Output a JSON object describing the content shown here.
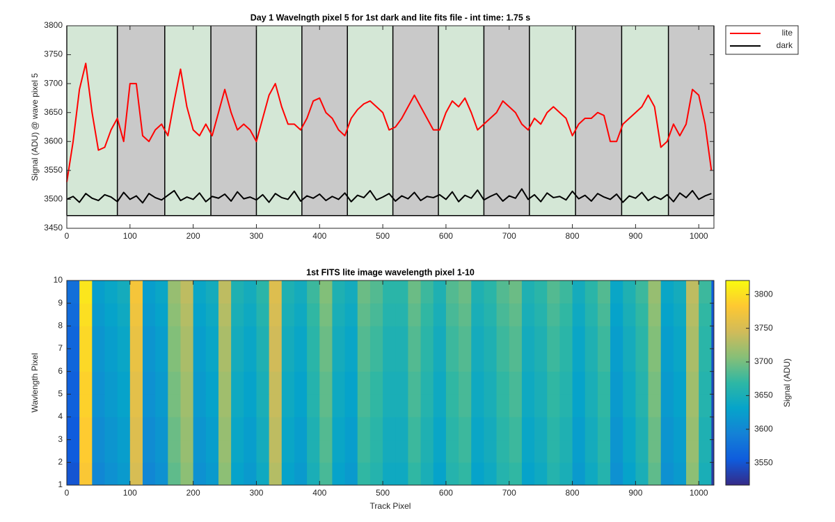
{
  "chart_data": [
    {
      "type": "line",
      "title": "Day 1 Wavelngth pixel 5 for 1st dark and lite fits file - int time: 1.75 s",
      "y_label": "Signal (ADU) @ wave pixel 5",
      "xlim": [
        0,
        1024
      ],
      "ylim": [
        3450,
        3800
      ],
      "xticks": [
        0,
        100,
        200,
        300,
        400,
        500,
        600,
        700,
        800,
        900,
        1000
      ],
      "yticks": [
        3450,
        3500,
        3550,
        3600,
        3650,
        3700,
        3750,
        3800
      ],
      "legend": "outside-top-right",
      "band_edges": [
        0,
        80,
        155,
        228,
        300,
        372,
        444,
        516,
        588,
        660,
        732,
        805,
        878,
        952,
        1024
      ],
      "band_colors": [
        "#d4e7d6",
        "#c9c9c9"
      ],
      "band_ylim": [
        3472,
        3800
      ],
      "x": [
        0,
        10,
        20,
        30,
        40,
        50,
        60,
        70,
        80,
        90,
        100,
        110,
        120,
        130,
        140,
        150,
        160,
        170,
        180,
        190,
        200,
        210,
        220,
        230,
        240,
        250,
        260,
        270,
        280,
        290,
        300,
        310,
        320,
        330,
        340,
        350,
        360,
        370,
        380,
        390,
        400,
        410,
        420,
        430,
        440,
        450,
        460,
        470,
        480,
        490,
        500,
        510,
        520,
        530,
        540,
        550,
        560,
        570,
        580,
        590,
        600,
        610,
        620,
        630,
        640,
        650,
        660,
        670,
        680,
        690,
        700,
        710,
        720,
        730,
        740,
        750,
        760,
        770,
        780,
        790,
        800,
        810,
        820,
        830,
        840,
        850,
        860,
        870,
        880,
        890,
        900,
        910,
        920,
        930,
        940,
        950,
        960,
        970,
        980,
        990,
        1000,
        1010,
        1020
      ],
      "series": [
        {
          "name": "lite",
          "color": "#ff0000",
          "values": [
            3530,
            3600,
            3690,
            3735,
            3650,
            3585,
            3590,
            3620,
            3640,
            3600,
            3700,
            3700,
            3610,
            3600,
            3620,
            3630,
            3610,
            3670,
            3725,
            3660,
            3620,
            3610,
            3630,
            3610,
            3650,
            3690,
            3650,
            3620,
            3630,
            3620,
            3600,
            3640,
            3680,
            3700,
            3660,
            3630,
            3630,
            3620,
            3640,
            3670,
            3675,
            3650,
            3640,
            3620,
            3610,
            3640,
            3655,
            3665,
            3670,
            3660,
            3650,
            3620,
            3625,
            3640,
            3660,
            3680,
            3660,
            3640,
            3620,
            3620,
            3650,
            3670,
            3660,
            3675,
            3650,
            3620,
            3630,
            3640,
            3650,
            3670,
            3660,
            3650,
            3630,
            3620,
            3640,
            3630,
            3650,
            3660,
            3650,
            3640,
            3610,
            3630,
            3640,
            3640,
            3650,
            3645,
            3600,
            3600,
            3630,
            3640,
            3650,
            3660,
            3680,
            3660,
            3590,
            3600,
            3630,
            3610,
            3630,
            3690,
            3680,
            3630,
            3550
          ]
        },
        {
          "name": "dark",
          "color": "#000000",
          "values": [
            3500,
            3505,
            3495,
            3510,
            3502,
            3498,
            3508,
            3504,
            3496,
            3512,
            3500,
            3506,
            3494,
            3510,
            3503,
            3499,
            3507,
            3515,
            3498,
            3504,
            3500,
            3511,
            3496,
            3505,
            3502,
            3509,
            3497,
            3513,
            3501,
            3504,
            3499,
            3508,
            3495,
            3510,
            3503,
            3500,
            3514,
            3497,
            3506,
            3502,
            3509,
            3498,
            3505,
            3500,
            3511,
            3496,
            3507,
            3503,
            3515,
            3499,
            3504,
            3510,
            3497,
            3506,
            3501,
            3512,
            3498,
            3505,
            3503,
            3508,
            3500,
            3513,
            3496,
            3507,
            3502,
            3516,
            3499,
            3505,
            3510,
            3497,
            3506,
            3502,
            3518,
            3500,
            3508,
            3496,
            3511,
            3503,
            3505,
            3499,
            3514,
            3501,
            3507,
            3497,
            3510,
            3504,
            3500,
            3509,
            3495,
            3506,
            3502,
            3512,
            3498,
            3505,
            3500,
            3508,
            3496,
            3511,
            3503,
            3515,
            3500,
            3506,
            3510
          ]
        }
      ]
    },
    {
      "type": "heatmap",
      "title": "1st FITS lite image wavelength pixel 1-10",
      "x_label": "Track Pixel",
      "y_label": "Wavlength Pixel",
      "xlim": [
        0,
        1024
      ],
      "ylim": [
        1,
        10
      ],
      "xticks": [
        0,
        100,
        200,
        300,
        400,
        500,
        600,
        700,
        800,
        900,
        1000
      ],
      "yticks": [
        1,
        2,
        3,
        4,
        5,
        6,
        7,
        8,
        9,
        10
      ],
      "colorbar_label": "Signal (ADU)",
      "colorbar_ticks": [
        3550,
        3600,
        3650,
        3700,
        3750,
        3800
      ],
      "clim": [
        3517,
        3821
      ],
      "colormap": [
        "#352a87",
        "#0f5cdd",
        "#1481d6",
        "#06a4ca",
        "#2eb7a4",
        "#87bf77",
        "#d1bb59",
        "#fec832",
        "#f9fb0e"
      ],
      "x_bins": [
        0,
        20,
        40,
        60,
        80,
        100,
        120,
        140,
        160,
        180,
        200,
        220,
        240,
        260,
        280,
        300,
        320,
        340,
        360,
        380,
        400,
        420,
        440,
        460,
        480,
        500,
        520,
        540,
        560,
        580,
        600,
        620,
        640,
        660,
        680,
        700,
        720,
        740,
        760,
        780,
        800,
        820,
        840,
        860,
        880,
        900,
        920,
        940,
        960,
        980,
        1000,
        1020,
        1024
      ],
      "y_bins": [
        1,
        2,
        3,
        4,
        5,
        6,
        7,
        8,
        9,
        10
      ],
      "z": [
        [
          3550,
          3780,
          3600,
          3610,
          3620,
          3750,
          3600,
          3610,
          3690,
          3710,
          3610,
          3620,
          3710,
          3630,
          3620,
          3640,
          3730,
          3630,
          3620,
          3650,
          3680,
          3630,
          3620,
          3670,
          3660,
          3640,
          3640,
          3670,
          3650,
          3630,
          3660,
          3670,
          3630,
          3640,
          3660,
          3670,
          3630,
          3640,
          3660,
          3650,
          3620,
          3640,
          3660,
          3610,
          3630,
          3650,
          3690,
          3610,
          3620,
          3710,
          3650,
          3530
        ],
        [
          3555,
          3785,
          3605,
          3615,
          3625,
          3755,
          3605,
          3615,
          3695,
          3715,
          3615,
          3625,
          3715,
          3635,
          3625,
          3645,
          3735,
          3635,
          3625,
          3655,
          3685,
          3635,
          3625,
          3675,
          3665,
          3645,
          3645,
          3675,
          3655,
          3635,
          3665,
          3675,
          3635,
          3645,
          3665,
          3675,
          3635,
          3645,
          3665,
          3655,
          3625,
          3645,
          3665,
          3615,
          3635,
          3655,
          3695,
          3615,
          3625,
          3715,
          3655,
          3535
        ],
        [
          3555,
          3785,
          3605,
          3615,
          3625,
          3755,
          3605,
          3615,
          3695,
          3715,
          3615,
          3625,
          3715,
          3635,
          3625,
          3645,
          3735,
          3635,
          3625,
          3655,
          3685,
          3635,
          3625,
          3675,
          3665,
          3645,
          3645,
          3675,
          3655,
          3635,
          3665,
          3675,
          3635,
          3645,
          3665,
          3675,
          3635,
          3645,
          3665,
          3655,
          3625,
          3645,
          3665,
          3615,
          3635,
          3655,
          3695,
          3615,
          3625,
          3715,
          3655,
          3535
        ],
        [
          3560,
          3790,
          3610,
          3620,
          3630,
          3760,
          3610,
          3620,
          3700,
          3720,
          3620,
          3630,
          3720,
          3640,
          3630,
          3650,
          3740,
          3640,
          3630,
          3660,
          3690,
          3640,
          3630,
          3680,
          3670,
          3650,
          3650,
          3680,
          3660,
          3640,
          3670,
          3680,
          3640,
          3650,
          3670,
          3680,
          3640,
          3650,
          3670,
          3660,
          3630,
          3650,
          3670,
          3620,
          3640,
          3660,
          3700,
          3620,
          3630,
          3720,
          3660,
          3540
        ],
        [
          3560,
          3790,
          3610,
          3620,
          3630,
          3760,
          3610,
          3620,
          3700,
          3720,
          3620,
          3630,
          3720,
          3640,
          3630,
          3650,
          3740,
          3640,
          3630,
          3660,
          3690,
          3640,
          3630,
          3680,
          3670,
          3650,
          3650,
          3680,
          3660,
          3640,
          3670,
          3680,
          3640,
          3650,
          3670,
          3680,
          3640,
          3650,
          3670,
          3660,
          3630,
          3650,
          3670,
          3620,
          3640,
          3660,
          3700,
          3620,
          3630,
          3720,
          3660,
          3540
        ],
        [
          3565,
          3795,
          3615,
          3625,
          3635,
          3765,
          3615,
          3625,
          3705,
          3725,
          3625,
          3635,
          3725,
          3645,
          3635,
          3655,
          3745,
          3645,
          3635,
          3665,
          3695,
          3645,
          3635,
          3685,
          3675,
          3655,
          3655,
          3685,
          3665,
          3645,
          3675,
          3685,
          3645,
          3655,
          3675,
          3685,
          3645,
          3655,
          3675,
          3665,
          3635,
          3655,
          3675,
          3625,
          3645,
          3665,
          3705,
          3625,
          3635,
          3725,
          3665,
          3545
        ],
        [
          3565,
          3795,
          3615,
          3625,
          3635,
          3765,
          3615,
          3625,
          3705,
          3725,
          3625,
          3635,
          3725,
          3645,
          3635,
          3655,
          3745,
          3645,
          3635,
          3665,
          3695,
          3645,
          3635,
          3685,
          3675,
          3655,
          3655,
          3685,
          3665,
          3645,
          3675,
          3685,
          3645,
          3655,
          3675,
          3685,
          3645,
          3655,
          3675,
          3665,
          3635,
          3655,
          3675,
          3625,
          3645,
          3665,
          3705,
          3625,
          3635,
          3725,
          3665,
          3545
        ],
        [
          3570,
          3800,
          3620,
          3630,
          3640,
          3770,
          3620,
          3630,
          3710,
          3730,
          3630,
          3640,
          3730,
          3650,
          3640,
          3660,
          3750,
          3650,
          3640,
          3670,
          3700,
          3650,
          3640,
          3690,
          3680,
          3660,
          3660,
          3690,
          3670,
          3650,
          3680,
          3690,
          3650,
          3660,
          3680,
          3690,
          3650,
          3660,
          3680,
          3670,
          3640,
          3660,
          3680,
          3630,
          3650,
          3670,
          3710,
          3630,
          3640,
          3730,
          3670,
          3550
        ],
        [
          3575,
          3805,
          3625,
          3635,
          3645,
          3775,
          3625,
          3635,
          3715,
          3735,
          3635,
          3645,
          3735,
          3655,
          3645,
          3665,
          3755,
          3655,
          3645,
          3675,
          3705,
          3655,
          3645,
          3695,
          3685,
          3665,
          3665,
          3695,
          3675,
          3655,
          3685,
          3695,
          3655,
          3665,
          3685,
          3695,
          3655,
          3665,
          3685,
          3675,
          3645,
          3665,
          3685,
          3635,
          3655,
          3675,
          3715,
          3635,
          3645,
          3735,
          3675,
          3555
        ]
      ]
    }
  ]
}
